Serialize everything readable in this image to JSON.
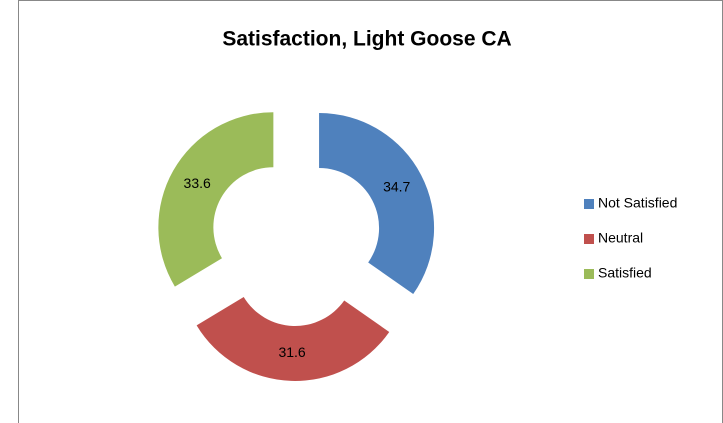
{
  "chart_data": {
    "type": "donut",
    "title": "Satisfaction, Light Goose CA",
    "series": [
      {
        "name": "Satisfaction",
        "categories": [
          "Not Satisfied",
          "Neutral",
          "Satisfied"
        ],
        "values": [
          34.7,
          31.6,
          33.6
        ],
        "colors": [
          "#4f81bd",
          "#c0504d",
          "#9bbb59"
        ]
      }
    ],
    "legend": "right"
  }
}
